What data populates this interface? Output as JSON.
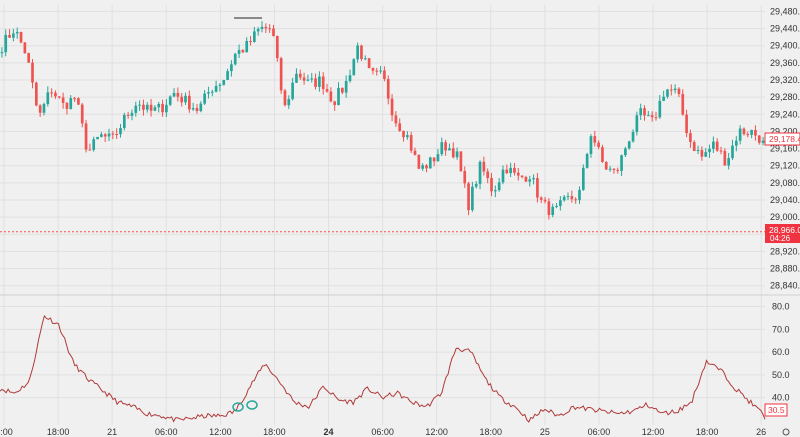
{
  "colors": {
    "up": "#26a69a",
    "down": "#ef5350",
    "indicator": "#b03a3a",
    "grid": "#e0e0e0",
    "price_badge": "#ef3340",
    "background": "#f0f0f0"
  },
  "chart_data": [
    {
      "type": "candlestick",
      "title": "",
      "y_ticks": [
        "29,480.0",
        "29,440.0",
        "29,400.0",
        "29,360.0",
        "29,320.0",
        "29,280.0",
        "29,240.0",
        "29,200.0",
        "29,160.0",
        "29,120.0",
        "29,080.0",
        "29,040.0",
        "29,000.0",
        "28,960.0",
        "28,920.0",
        "28,880.0",
        "28,840.0"
      ],
      "ylim": [
        28830,
        29495
      ],
      "x_ticks": [
        {
          "label": "2:00",
          "bold": false
        },
        {
          "label": "18:00",
          "bold": false
        },
        {
          "label": "21",
          "bold": false
        },
        {
          "label": "06:00",
          "bold": false
        },
        {
          "label": "12:00",
          "bold": false
        },
        {
          "label": "18:00",
          "bold": false
        },
        {
          "label": "24",
          "bold": true
        },
        {
          "label": "06:00",
          "bold": false
        },
        {
          "label": "12:00",
          "bold": false
        },
        {
          "label": "18:00",
          "bold": false
        },
        {
          "label": "25",
          "bold": false
        },
        {
          "label": "06:00",
          "bold": false
        },
        {
          "label": "12:00",
          "bold": false
        },
        {
          "label": "18:00",
          "bold": false
        },
        {
          "label": "26",
          "bold": false
        }
      ],
      "anchors": [
        29400,
        29440,
        29380,
        29230,
        29300,
        29260,
        29280,
        29150,
        29190,
        29180,
        29230,
        29270,
        29245,
        29255,
        29290,
        29270,
        29250,
        29300,
        29320,
        29380,
        29400,
        29440,
        29440,
        29250,
        29340,
        29310,
        29320,
        29270,
        29310,
        29400,
        29330,
        29330,
        29230,
        29190,
        29110,
        29130,
        29170,
        29150,
        29030,
        29120,
        29060,
        29120,
        29090,
        29100,
        29030,
        29010,
        29040,
        29050,
        29200,
        29120,
        29100,
        29180,
        29240,
        29220,
        29300,
        29290,
        29180,
        29140,
        29170,
        29130,
        29200,
        29200,
        29180
      ],
      "current_price": "28,966.0",
      "countdown": "04:26",
      "last_price": "29,178.4",
      "current_value": 28966,
      "last_value": 29178.4
    },
    {
      "type": "line",
      "y_ticks": [
        "80.0",
        "70.0",
        "60.0",
        "50.0",
        "40.0"
      ],
      "ylim": [
        28,
        82
      ],
      "anchors": [
        44,
        42,
        47,
        76,
        72,
        55,
        48,
        43,
        38,
        36,
        33,
        32,
        30,
        31,
        32,
        32,
        34,
        45,
        55,
        47,
        38,
        36,
        45,
        39,
        38,
        44,
        40,
        42,
        38,
        36,
        42,
        62,
        60,
        48,
        40,
        36,
        30,
        35,
        32,
        36,
        35,
        34,
        33,
        34,
        37,
        33,
        34,
        38,
        56,
        52,
        44,
        38,
        32
      ],
      "current_value": "30.5",
      "last": 30.5
    }
  ]
}
